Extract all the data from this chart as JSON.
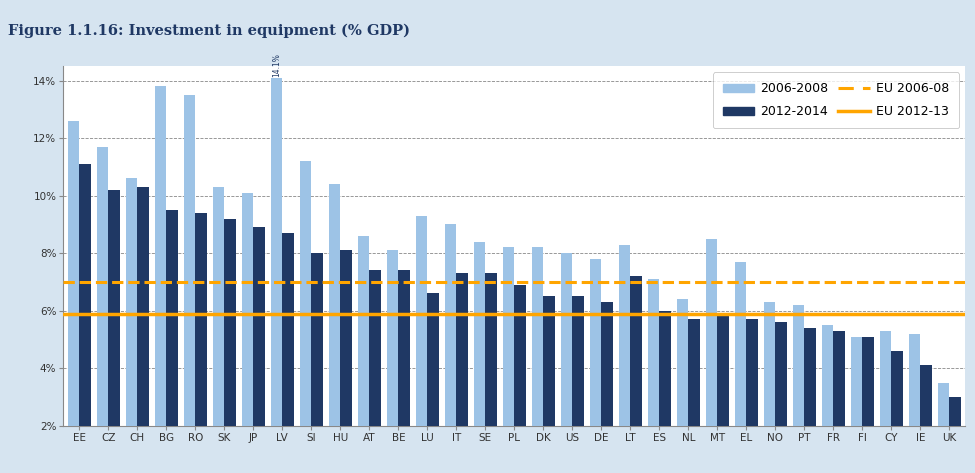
{
  "title": "Figure 1.1.16: Investment in equipment (% GDP)",
  "categories": [
    "EE",
    "CZ",
    "CH",
    "BG",
    "RO",
    "SK",
    "JP",
    "LV",
    "SI",
    "HU",
    "AT",
    "BE",
    "LU",
    "IT",
    "SE",
    "PL",
    "DK",
    "US",
    "DE",
    "LT",
    "ES",
    "NL",
    "MT",
    "EL",
    "NO",
    "PT",
    "FR",
    "FI",
    "CY",
    "IE",
    "UK"
  ],
  "values_2006_2008": [
    12.6,
    11.7,
    10.6,
    13.8,
    13.5,
    10.3,
    10.1,
    14.1,
    11.2,
    10.4,
    8.6,
    8.1,
    9.3,
    9.0,
    8.4,
    8.2,
    8.2,
    8.0,
    7.8,
    8.3,
    7.1,
    6.4,
    8.5,
    7.7,
    6.3,
    6.2,
    5.5,
    5.1,
    5.3,
    5.2,
    3.5
  ],
  "values_2012_2014": [
    11.1,
    10.2,
    10.3,
    9.5,
    9.4,
    9.2,
    8.9,
    8.7,
    8.0,
    8.1,
    7.4,
    7.4,
    6.6,
    7.3,
    7.3,
    6.9,
    6.5,
    6.5,
    6.3,
    7.2,
    6.0,
    5.7,
    5.9,
    5.7,
    5.6,
    5.4,
    5.3,
    5.1,
    4.6,
    4.1,
    3.0
  ],
  "eu_2006_08": 7.0,
  "eu_2012_13": 5.9,
  "color_2006_2008": "#9DC3E6",
  "color_2012_2014": "#1F3864",
  "color_eu_2006": "#FFA500",
  "color_eu_2012": "#FFA500",
  "ymin": 2.0,
  "ymax": 14.5,
  "yticks": [
    2,
    4,
    6,
    8,
    10,
    12,
    14
  ],
  "background_color": "#D6E4F0",
  "plot_bg_color": "#FFFFFF",
  "title_bg_color": "#C5D9EE",
  "lv_annotation": "14.1%",
  "title_fontsize": 10.5,
  "tick_fontsize": 7.5,
  "legend_fontsize": 9
}
